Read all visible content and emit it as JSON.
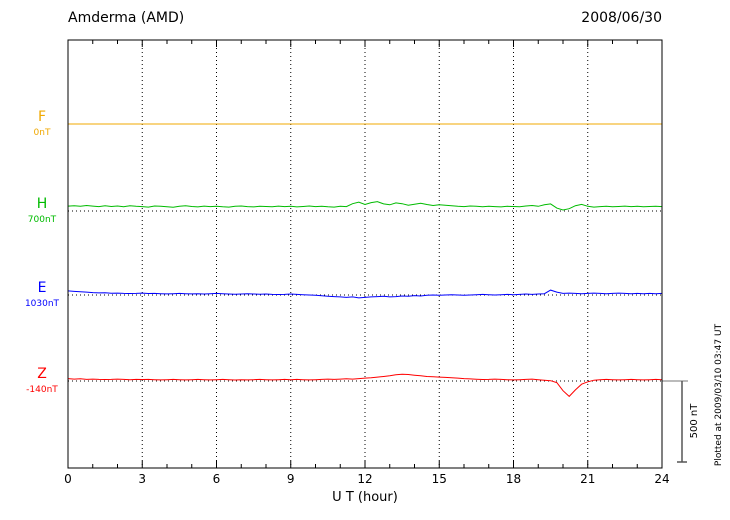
{
  "header": {
    "station_title": "Amderma (AMD)",
    "date": "2008/06/30"
  },
  "footer": {
    "xaxis_label": "U T (hour)"
  },
  "side": {
    "scale_label": "500 nT",
    "plotted_at": "Plotted at 2009/03/10 03:47 UT"
  },
  "chart_data": {
    "type": "line",
    "title": "Amderma (AMD)",
    "subtitle": "2008/06/30",
    "xlabel": "U T (hour)",
    "x_range_hours": [
      0,
      24
    ],
    "x_tick_labels": [
      "0",
      "3",
      "6",
      "9",
      "12",
      "15",
      "18",
      "21",
      "24"
    ],
    "x_step_hours": 0.25,
    "grid": "dotted",
    "legend_position": "left-of-axis",
    "scale_bar": {
      "label": "500 nT",
      "nT": 500
    },
    "series": [
      {
        "name": "F",
        "baseline_label": "0nT",
        "color": "#f0a800",
        "values": [
          0,
          0,
          0,
          0,
          0,
          0,
          0,
          0,
          0,
          0,
          0,
          0,
          0,
          0,
          0,
          0,
          0,
          0,
          0,
          0,
          0,
          0,
          0,
          0,
          0,
          0,
          0,
          0,
          0,
          0,
          0,
          0,
          0,
          0,
          0,
          0,
          0,
          0,
          0,
          0,
          0,
          0,
          0,
          0,
          0,
          0,
          0,
          0,
          0,
          0,
          0,
          0,
          0,
          0,
          0,
          0,
          0,
          0,
          0,
          0,
          0,
          0,
          0,
          0,
          0,
          0,
          0,
          0,
          0,
          0,
          0,
          0,
          0,
          0,
          0,
          0,
          0,
          0,
          0,
          0,
          0,
          0,
          0,
          0,
          0,
          0,
          0,
          0,
          0,
          0,
          0,
          0,
          0,
          0,
          0,
          0,
          0
        ]
      },
      {
        "name": "H",
        "baseline_label": "700nT",
        "color": "#00bb00",
        "values": [
          30,
          33,
          29,
          34,
          30,
          27,
          32,
          28,
          31,
          26,
          33,
          29,
          27,
          24,
          31,
          29,
          26,
          23,
          29,
          32,
          28,
          25,
          30,
          27,
          29,
          26,
          24,
          29,
          31,
          27,
          25,
          29,
          28,
          26,
          30,
          27,
          29,
          25,
          28,
          31,
          27,
          29,
          26,
          24,
          29,
          27,
          45,
          55,
          40,
          52,
          58,
          44,
          38,
          50,
          45,
          36,
          42,
          48,
          40,
          34,
          38,
          36,
          33,
          29,
          27,
          31,
          29,
          26,
          29,
          27,
          25,
          29,
          28,
          26,
          31,
          34,
          29,
          38,
          44,
          18,
          6,
          14,
          33,
          41,
          29,
          24,
          27,
          29,
          26,
          28,
          30,
          27,
          29,
          26,
          28,
          29,
          27
        ]
      },
      {
        "name": "E",
        "baseline_label": "1030nT",
        "color": "#0000ff",
        "values": [
          25,
          22,
          20,
          18,
          15,
          13,
          14,
          11,
          12,
          10,
          9,
          10,
          12,
          9,
          10,
          8,
          7,
          8,
          10,
          8,
          7,
          8,
          6,
          8,
          10,
          8,
          6,
          5,
          6,
          8,
          6,
          5,
          6,
          4,
          3,
          4,
          6,
          4,
          2,
          0,
          -2,
          -5,
          -8,
          -10,
          -12,
          -15,
          -12,
          -18,
          -15,
          -12,
          -10,
          -8,
          -12,
          -10,
          -6,
          -8,
          -4,
          -6,
          -2,
          0,
          -2,
          0,
          2,
          0,
          -2,
          0,
          2,
          4,
          2,
          0,
          2,
          4,
          2,
          4,
          6,
          4,
          6,
          8,
          30,
          18,
          10,
          12,
          10,
          8,
          10,
          12,
          10,
          8,
          10,
          12,
          10,
          8,
          10,
          8,
          10,
          8,
          10
        ]
      },
      {
        "name": "Z",
        "baseline_label": "-140nT",
        "color": "#ff0000",
        "values": [
          15,
          12,
          14,
          10,
          12,
          10,
          9,
          10,
          12,
          10,
          8,
          10,
          9,
          10,
          8,
          7,
          8,
          10,
          8,
          7,
          8,
          10,
          8,
          7,
          8,
          10,
          8,
          6,
          8,
          7,
          8,
          10,
          8,
          7,
          8,
          10,
          8,
          10,
          8,
          7,
          8,
          10,
          12,
          10,
          12,
          14,
          12,
          15,
          18,
          20,
          24,
          28,
          32,
          38,
          42,
          40,
          36,
          32,
          28,
          26,
          24,
          22,
          20,
          18,
          15,
          13,
          11,
          9,
          10,
          12,
          10,
          8,
          7,
          8,
          10,
          12,
          8,
          5,
          2,
          -10,
          -60,
          -95,
          -55,
          -20,
          -5,
          5,
          8,
          10,
          8,
          7,
          8,
          10,
          8,
          7,
          8,
          10,
          8
        ]
      }
    ]
  }
}
